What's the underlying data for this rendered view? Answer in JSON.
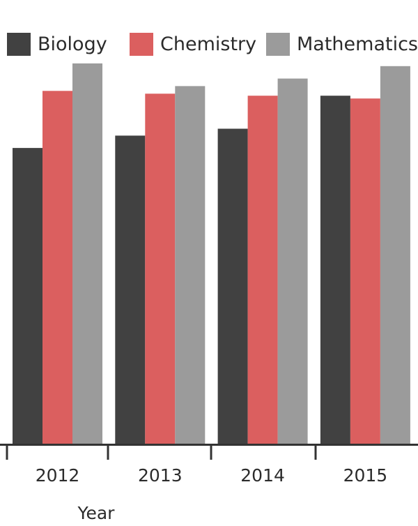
{
  "chart_data": {
    "type": "bar",
    "title": "",
    "xlabel": "Year",
    "ylabel": "",
    "categories": [
      "2012",
      "2013",
      "2014",
      "2015"
    ],
    "series": [
      {
        "name": "Biology",
        "color": "#414141",
        "values": [
          430,
          448,
          458,
          506
        ]
      },
      {
        "name": "Chemistry",
        "color": "#db5f5f",
        "values": [
          513,
          509,
          506,
          502
        ]
      },
      {
        "name": "Mathematics",
        "color": "#9b9b9b",
        "values": [
          553,
          520,
          531,
          549
        ]
      }
    ],
    "ylim": [
      0,
      560
    ],
    "grid": false,
    "legend_position": "top"
  }
}
